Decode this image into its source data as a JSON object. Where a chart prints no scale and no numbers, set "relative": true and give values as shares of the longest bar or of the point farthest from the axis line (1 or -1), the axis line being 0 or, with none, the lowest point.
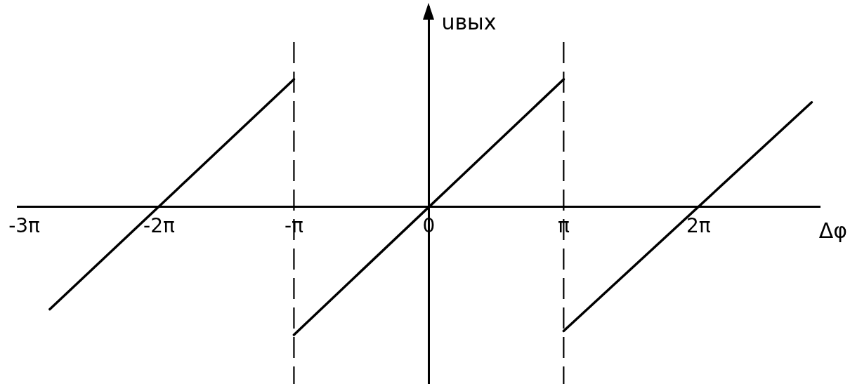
{
  "chart_data": {
    "type": "line",
    "xlabel": "Δφ",
    "ylabel": "uвых",
    "relative": true,
    "xlim": [
      -9.58,
      9.11
    ],
    "xticks": [
      {
        "value": -9.425,
        "label": "-3π"
      },
      {
        "value": -6.283,
        "label": "-2π"
      },
      {
        "value": -3.142,
        "label": "-π"
      },
      0,
      {
        "value": 3.142,
        "label": "π"
      },
      {
        "value": 6.283,
        "label": "2π"
      }
    ],
    "series": [
      {
        "color": "#000000",
        "x": [
          -8.83,
          -3.142
        ],
        "values": [
          -0.8,
          1
        ]
      },
      {
        "color": "#000000",
        "x": [
          -3.142,
          3.142
        ],
        "values": [
          -1,
          1
        ]
      },
      {
        "color": "#000000",
        "x": [
          3.142,
          8.92
        ],
        "values": [
          -0.97,
          0.82
        ]
      }
    ],
    "ref_lines": [
      {
        "axis": "x",
        "value": -3.142,
        "color": "#000000",
        "line_style": "dashed"
      },
      {
        "axis": "x",
        "value": 3.142,
        "color": "#000000",
        "line_style": "dashed"
      }
    ],
    "grid": false,
    "legend": false,
    "marker": "none",
    "line_style": "solid"
  }
}
